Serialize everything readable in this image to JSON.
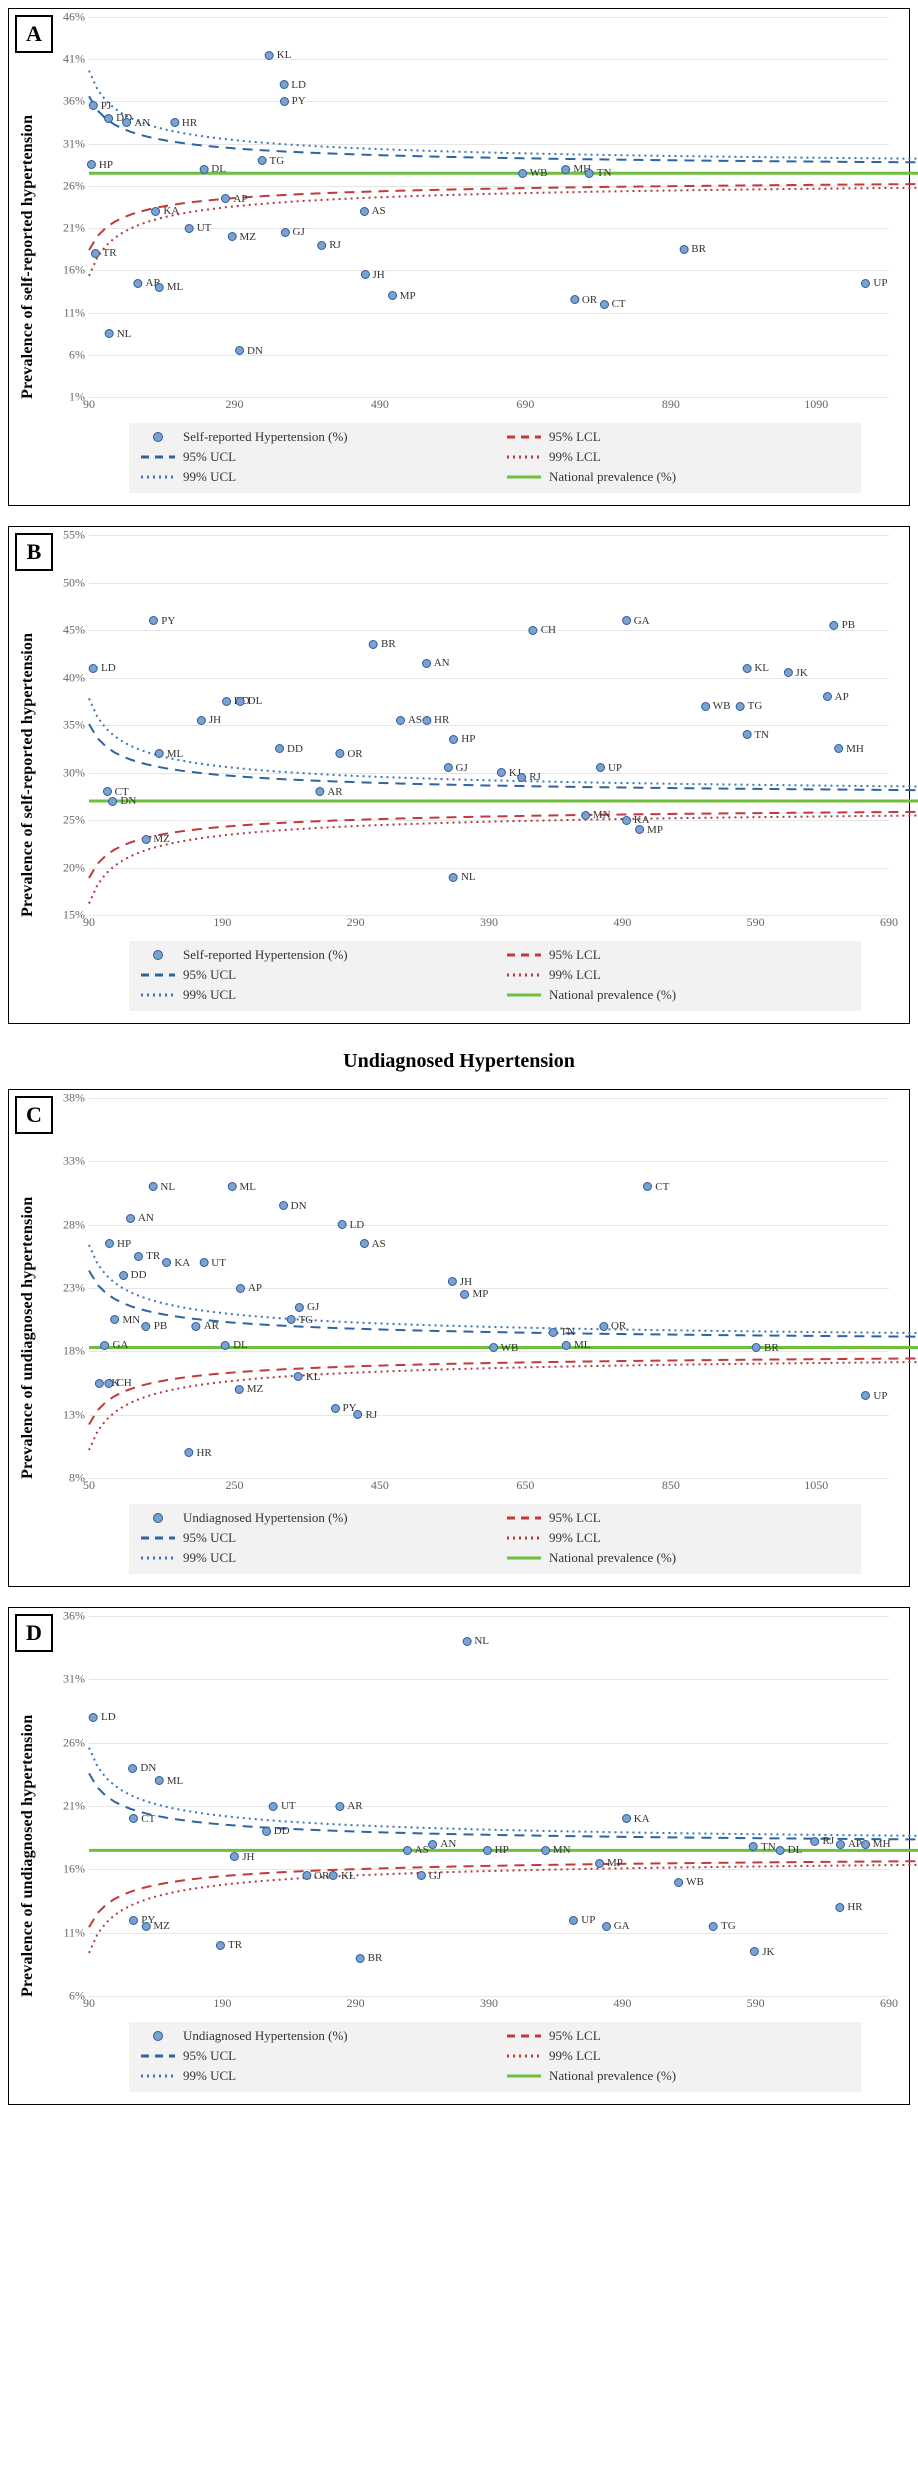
{
  "colors": {
    "marker_fill": "#7aa1cf",
    "marker_border": "#2b5b9a",
    "ucl95": "#2f64a3",
    "lcl95": "#c23a3a",
    "ucl99": "#3b74bb",
    "lcl99": "#b33a3a",
    "national": "#6fbf3f",
    "grid": "#e6e6e6",
    "text": "#333333"
  },
  "section_title": "Undiagnosed Hypertension",
  "legend": {
    "series": "",
    "lcl95": "95% LCL",
    "ucl95": "95% UCL",
    "lcl99": "99% LCL",
    "ucl99": "99% UCL",
    "national": "National prevalence (%)"
  },
  "panels": [
    {
      "id": "A",
      "ylabel": "Prevalence of self-reported hypertension",
      "series_label": "Self-reported Hypertension (%)",
      "ylim": [
        1,
        46
      ],
      "ytick_step": 5,
      "xlim": [
        90,
        1190
      ],
      "xticks": [
        90,
        290,
        490,
        690,
        890,
        1090
      ],
      "national": 27.5,
      "points": [
        {
          "x": 105,
          "y": 35.5,
          "l": "PJ"
        },
        {
          "x": 130,
          "y": 34,
          "l": "DD"
        },
        {
          "x": 155,
          "y": 33.5,
          "l": "AN"
        },
        {
          "x": 220,
          "y": 33.5,
          "l": "HR"
        },
        {
          "x": 105,
          "y": 28.5,
          "l": "HP"
        },
        {
          "x": 260,
          "y": 28,
          "l": "DL"
        },
        {
          "x": 340,
          "y": 29,
          "l": "TG"
        },
        {
          "x": 195,
          "y": 23,
          "l": "KA"
        },
        {
          "x": 240,
          "y": 21,
          "l": "UT"
        },
        {
          "x": 290,
          "y": 24.5,
          "l": "AP"
        },
        {
          "x": 300,
          "y": 20,
          "l": "MZ"
        },
        {
          "x": 370,
          "y": 20.5,
          "l": "GJ"
        },
        {
          "x": 420,
          "y": 19,
          "l": "RJ"
        },
        {
          "x": 480,
          "y": 23,
          "l": "AS"
        },
        {
          "x": 110,
          "y": 18,
          "l": "TR"
        },
        {
          "x": 170,
          "y": 14.5,
          "l": "AR"
        },
        {
          "x": 200,
          "y": 14,
          "l": "ML"
        },
        {
          "x": 480,
          "y": 15.5,
          "l": "JH"
        },
        {
          "x": 520,
          "y": 13,
          "l": "MP"
        },
        {
          "x": 700,
          "y": 27.5,
          "l": "WB"
        },
        {
          "x": 760,
          "y": 28,
          "l": "MH"
        },
        {
          "x": 790,
          "y": 27.5,
          "l": "TN"
        },
        {
          "x": 770,
          "y": 12.5,
          "l": "OR"
        },
        {
          "x": 810,
          "y": 12,
          "l": "CT"
        },
        {
          "x": 920,
          "y": 18.5,
          "l": "BR"
        },
        {
          "x": 1170,
          "y": 14.5,
          "l": "UP"
        },
        {
          "x": 130,
          "y": 8.5,
          "l": "NL"
        },
        {
          "x": 310,
          "y": 6.5,
          "l": "DN"
        },
        {
          "x": 350,
          "y": 41.5,
          "l": "KL"
        },
        {
          "x": 370,
          "y": 38,
          "l": "LD"
        },
        {
          "x": 370,
          "y": 36,
          "l": "PY"
        }
      ]
    },
    {
      "id": "B",
      "ylabel": "Prevalence of self-reported hypertension",
      "series_label": "Self-reported Hypertension (%)",
      "ylim": [
        15,
        55
      ],
      "ytick_step": 5,
      "xlim": [
        90,
        690
      ],
      "xticks": [
        90,
        190,
        290,
        390,
        490,
        590,
        690
      ],
      "national": 27,
      "points": [
        {
          "x": 100,
          "y": 41,
          "l": "LD"
        },
        {
          "x": 145,
          "y": 46,
          "l": "PY"
        },
        {
          "x": 200,
          "y": 37.5,
          "l": "DD"
        },
        {
          "x": 210,
          "y": 37.5,
          "l": "DL"
        },
        {
          "x": 180,
          "y": 35.5,
          "l": "JH"
        },
        {
          "x": 240,
          "y": 32.5,
          "l": "DD"
        },
        {
          "x": 285,
          "y": 32,
          "l": "OR"
        },
        {
          "x": 150,
          "y": 32,
          "l": "ML"
        },
        {
          "x": 110,
          "y": 28,
          "l": "CT"
        },
        {
          "x": 115,
          "y": 27,
          "l": "DN"
        },
        {
          "x": 140,
          "y": 23,
          "l": "MZ"
        },
        {
          "x": 270,
          "y": 28,
          "l": "AR"
        },
        {
          "x": 310,
          "y": 43.5,
          "l": "BR"
        },
        {
          "x": 350,
          "y": 41.5,
          "l": "AN"
        },
        {
          "x": 330,
          "y": 35.5,
          "l": "AS"
        },
        {
          "x": 350,
          "y": 35.5,
          "l": "HR"
        },
        {
          "x": 370,
          "y": 33.5,
          "l": "HP"
        },
        {
          "x": 365,
          "y": 30.5,
          "l": "GJ"
        },
        {
          "x": 405,
          "y": 30,
          "l": "KJ"
        },
        {
          "x": 420,
          "y": 29.5,
          "l": "RJ"
        },
        {
          "x": 430,
          "y": 45,
          "l": "CH"
        },
        {
          "x": 500,
          "y": 46,
          "l": "GA"
        },
        {
          "x": 480,
          "y": 30.5,
          "l": "UP"
        },
        {
          "x": 470,
          "y": 25.5,
          "l": "MN"
        },
        {
          "x": 500,
          "y": 25,
          "l": "KA"
        },
        {
          "x": 510,
          "y": 24,
          "l": "MP"
        },
        {
          "x": 370,
          "y": 19,
          "l": "NL"
        },
        {
          "x": 560,
          "y": 37,
          "l": "WB"
        },
        {
          "x": 585,
          "y": 37,
          "l": "TG"
        },
        {
          "x": 590,
          "y": 34,
          "l": "TN"
        },
        {
          "x": 590,
          "y": 41,
          "l": "KL"
        },
        {
          "x": 620,
          "y": 40.5,
          "l": "JK"
        },
        {
          "x": 650,
          "y": 38,
          "l": "AP"
        },
        {
          "x": 660,
          "y": 32.5,
          "l": "MH"
        },
        {
          "x": 655,
          "y": 45.5,
          "l": "PB"
        }
      ]
    },
    {
      "id": "C",
      "ylabel": "Prevalence of undiagnosed hypertension",
      "series_label": "Undiagnosed Hypertension (%)",
      "ylim": [
        8,
        38
      ],
      "ytick_step": 5,
      "xlim": [
        50,
        1150
      ],
      "xticks": [
        50,
        250,
        450,
        650,
        850,
        1050
      ],
      "national": 18.3,
      "points": [
        {
          "x": 150,
          "y": 31,
          "l": "NL"
        },
        {
          "x": 260,
          "y": 31,
          "l": "ML"
        },
        {
          "x": 330,
          "y": 29.5,
          "l": "DN"
        },
        {
          "x": 120,
          "y": 28.5,
          "l": "AN"
        },
        {
          "x": 90,
          "y": 26.5,
          "l": "HP"
        },
        {
          "x": 130,
          "y": 25.5,
          "l": "TR"
        },
        {
          "x": 170,
          "y": 25,
          "l": "KA"
        },
        {
          "x": 220,
          "y": 25,
          "l": "UT"
        },
        {
          "x": 110,
          "y": 24,
          "l": "DD"
        },
        {
          "x": 410,
          "y": 28,
          "l": "LD"
        },
        {
          "x": 440,
          "y": 26.5,
          "l": "AS"
        },
        {
          "x": 270,
          "y": 23,
          "l": "AP"
        },
        {
          "x": 350,
          "y": 21.5,
          "l": "GJ"
        },
        {
          "x": 340,
          "y": 20.5,
          "l": "TG"
        },
        {
          "x": 560,
          "y": 23.5,
          "l": "JH"
        },
        {
          "x": 580,
          "y": 22.5,
          "l": "MP"
        },
        {
          "x": 100,
          "y": 20.5,
          "l": "MN"
        },
        {
          "x": 140,
          "y": 20,
          "l": "PB"
        },
        {
          "x": 210,
          "y": 20,
          "l": "AR"
        },
        {
          "x": 85,
          "y": 18.5,
          "l": "GA"
        },
        {
          "x": 250,
          "y": 18.5,
          "l": "DL"
        },
        {
          "x": 75,
          "y": 15.5,
          "l": "JK"
        },
        {
          "x": 90,
          "y": 15.5,
          "l": "CH"
        },
        {
          "x": 270,
          "y": 15,
          "l": "MZ"
        },
        {
          "x": 350,
          "y": 16,
          "l": "KL"
        },
        {
          "x": 400,
          "y": 13.5,
          "l": "PY"
        },
        {
          "x": 430,
          "y": 13,
          "l": "RJ"
        },
        {
          "x": 200,
          "y": 10,
          "l": "HR"
        },
        {
          "x": 620,
          "y": 18.3,
          "l": "WB"
        },
        {
          "x": 700,
          "y": 19.5,
          "l": "TN"
        },
        {
          "x": 720,
          "y": 18.5,
          "l": "ML"
        },
        {
          "x": 770,
          "y": 20,
          "l": "OR"
        },
        {
          "x": 830,
          "y": 31,
          "l": "CT"
        },
        {
          "x": 980,
          "y": 18.3,
          "l": "BR"
        },
        {
          "x": 1130,
          "y": 14.5,
          "l": "UP"
        }
      ]
    },
    {
      "id": "D",
      "ylabel": "Prevalence of undiagnosed hypertension",
      "series_label": "Undiagnosed Hypertension (%)",
      "ylim": [
        6,
        36
      ],
      "ytick_step": 5,
      "xlim": [
        90,
        690
      ],
      "xticks": [
        90,
        190,
        290,
        390,
        490,
        590,
        690
      ],
      "national": 17.5,
      "points": [
        {
          "x": 100,
          "y": 28,
          "l": "LD"
        },
        {
          "x": 130,
          "y": 24,
          "l": "DN"
        },
        {
          "x": 150,
          "y": 23,
          "l": "ML"
        },
        {
          "x": 130,
          "y": 20,
          "l": "CT"
        },
        {
          "x": 380,
          "y": 34,
          "l": "NL"
        },
        {
          "x": 235,
          "y": 21,
          "l": "UT"
        },
        {
          "x": 285,
          "y": 21,
          "l": "AR"
        },
        {
          "x": 230,
          "y": 19,
          "l": "DD"
        },
        {
          "x": 205,
          "y": 17,
          "l": "JH"
        },
        {
          "x": 260,
          "y": 15.5,
          "l": "OR"
        },
        {
          "x": 280,
          "y": 15.5,
          "l": "KL"
        },
        {
          "x": 130,
          "y": 12,
          "l": "PY"
        },
        {
          "x": 140,
          "y": 11.5,
          "l": "MZ"
        },
        {
          "x": 195,
          "y": 10,
          "l": "TR"
        },
        {
          "x": 300,
          "y": 9,
          "l": "BR"
        },
        {
          "x": 335,
          "y": 17.5,
          "l": "AS"
        },
        {
          "x": 355,
          "y": 18,
          "l": "AN"
        },
        {
          "x": 345,
          "y": 15.5,
          "l": "GJ"
        },
        {
          "x": 395,
          "y": 17.5,
          "l": "HP"
        },
        {
          "x": 440,
          "y": 17.5,
          "l": "MN"
        },
        {
          "x": 480,
          "y": 16.5,
          "l": "MP"
        },
        {
          "x": 460,
          "y": 12,
          "l": "UP"
        },
        {
          "x": 485,
          "y": 11.5,
          "l": "GA"
        },
        {
          "x": 500,
          "y": 20,
          "l": "KA"
        },
        {
          "x": 540,
          "y": 15,
          "l": "WB"
        },
        {
          "x": 565,
          "y": 11.5,
          "l": "TG"
        },
        {
          "x": 595,
          "y": 17.8,
          "l": "TN"
        },
        {
          "x": 615,
          "y": 17.5,
          "l": "DL"
        },
        {
          "x": 595,
          "y": 9.5,
          "l": "JK"
        },
        {
          "x": 640,
          "y": 18.2,
          "l": "RJ"
        },
        {
          "x": 660,
          "y": 18,
          "l": "AP"
        },
        {
          "x": 680,
          "y": 18,
          "l": "MH"
        },
        {
          "x": 660,
          "y": 13,
          "l": "HR"
        }
      ]
    }
  ]
}
